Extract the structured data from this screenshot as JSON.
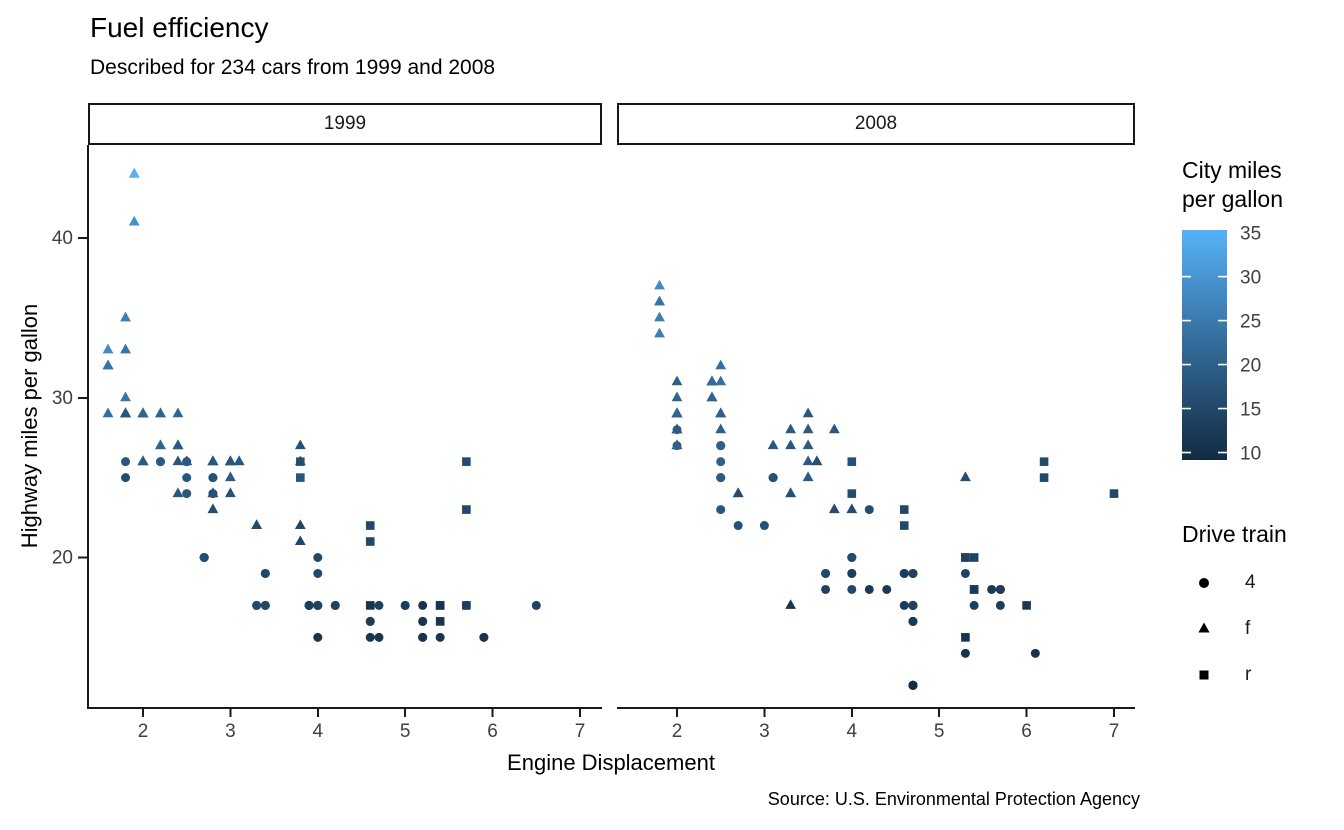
{
  "title": "Fuel efficiency",
  "subtitle": "Described for 234 cars from 1999 and 2008",
  "caption": "Source: U.S. Environmental Protection Agency",
  "chart_data": {
    "type": "scatter",
    "title": "Fuel efficiency",
    "subtitle": "Described for 234 cars from 1999 and 2008",
    "xlabel": "Engine Displacement",
    "ylabel": "Highway miles per gallon",
    "facets": [
      {
        "label": "1999"
      },
      {
        "label": "2008"
      }
    ],
    "x_ticks": [
      2,
      3,
      4,
      5,
      6,
      7
    ],
    "y_ticks": [
      20,
      30,
      40
    ],
    "xlim": [
      1.37,
      7.25
    ],
    "ylim": [
      10.5,
      45.7
    ],
    "grid": false,
    "color_scale": {
      "title": "City miles\nper gallon",
      "low_color": "#132B43",
      "high_color": "#56B1F7",
      "domain": [
        9,
        35
      ],
      "ticks": [
        35,
        30,
        25,
        20,
        15,
        10
      ]
    },
    "shape_legend": {
      "title": "Drive train",
      "items": [
        {
          "shape": "circle",
          "label": "4"
        },
        {
          "shape": "triangle",
          "label": "f"
        },
        {
          "shape": "square",
          "label": "r"
        }
      ]
    },
    "point_format": [
      "displ",
      "hwy",
      "cty",
      "drv"
    ],
    "points": {
      "1999": [
        [
          1.8,
          29,
          18,
          "f"
        ],
        [
          1.8,
          29,
          21,
          "f"
        ],
        [
          2.8,
          26,
          16,
          "f"
        ],
        [
          2.8,
          26,
          18,
          "f"
        ],
        [
          1.8,
          26,
          18,
          "4"
        ],
        [
          1.8,
          25,
          16,
          "4"
        ],
        [
          2.8,
          25,
          15,
          "4"
        ],
        [
          2.8,
          25,
          17,
          "4"
        ],
        [
          2.8,
          24,
          15,
          "4"
        ],
        [
          5.7,
          17,
          13,
          "r"
        ],
        [
          5.7,
          26,
          16,
          "r"
        ],
        [
          5.7,
          23,
          15,
          "r"
        ],
        [
          5.7,
          17,
          13,
          "4"
        ],
        [
          6.5,
          17,
          14,
          "4"
        ],
        [
          2.4,
          27,
          19,
          "f"
        ],
        [
          3.1,
          26,
          18,
          "f"
        ],
        [
          2.4,
          24,
          18,
          "f"
        ],
        [
          3.0,
          24,
          17,
          "f"
        ],
        [
          3.3,
          22,
          16,
          "f"
        ],
        [
          3.3,
          22,
          16,
          "f"
        ],
        [
          3.8,
          22,
          15,
          "f"
        ],
        [
          3.8,
          21,
          15,
          "f"
        ],
        [
          3.9,
          17,
          13,
          "4"
        ],
        [
          3.9,
          17,
          14,
          "4"
        ],
        [
          5.2,
          17,
          11,
          "4"
        ],
        [
          5.2,
          15,
          11,
          "4"
        ],
        [
          3.9,
          17,
          13,
          "4"
        ],
        [
          5.2,
          16,
          11,
          "4"
        ],
        [
          5.9,
          15,
          11,
          "4"
        ],
        [
          5.2,
          15,
          11,
          "4"
        ],
        [
          5.2,
          16,
          11,
          "4"
        ],
        [
          5.9,
          15,
          11,
          "4"
        ],
        [
          4.6,
          17,
          11,
          "r"
        ],
        [
          5.4,
          17,
          11,
          "r"
        ],
        [
          4.0,
          17,
          14,
          "4"
        ],
        [
          4.0,
          19,
          15,
          "4"
        ],
        [
          4.0,
          17,
          14,
          "4"
        ],
        [
          5.0,
          17,
          13,
          "4"
        ],
        [
          4.2,
          17,
          14,
          "4"
        ],
        [
          4.2,
          17,
          14,
          "4"
        ],
        [
          4.6,
          16,
          13,
          "4"
        ],
        [
          4.6,
          16,
          13,
          "4"
        ],
        [
          5.4,
          15,
          11,
          "4"
        ],
        [
          3.8,
          26,
          18,
          "r"
        ],
        [
          3.8,
          25,
          18,
          "r"
        ],
        [
          4.6,
          21,
          15,
          "r"
        ],
        [
          4.6,
          22,
          15,
          "r"
        ],
        [
          1.6,
          33,
          28,
          "f"
        ],
        [
          1.6,
          32,
          24,
          "f"
        ],
        [
          1.6,
          32,
          25,
          "f"
        ],
        [
          1.6,
          29,
          23,
          "f"
        ],
        [
          1.6,
          32,
          24,
          "f"
        ],
        [
          2.4,
          26,
          18,
          "f"
        ],
        [
          2.4,
          27,
          18,
          "f"
        ],
        [
          2.5,
          26,
          18,
          "f"
        ],
        [
          2.5,
          26,
          18,
          "f"
        ],
        [
          2.0,
          26,
          19,
          "f"
        ],
        [
          2.0,
          29,
          19,
          "f"
        ],
        [
          4.0,
          20,
          15,
          "4"
        ],
        [
          4.7,
          17,
          14,
          "4"
        ],
        [
          4.0,
          15,
          11,
          "4"
        ],
        [
          4.6,
          15,
          11,
          "4"
        ],
        [
          5.4,
          17,
          11,
          "r"
        ],
        [
          5.4,
          16,
          11,
          "r"
        ],
        [
          4.0,
          17,
          14,
          "4"
        ],
        [
          5.0,
          17,
          13,
          "4"
        ],
        [
          2.4,
          29,
          21,
          "f"
        ],
        [
          2.4,
          27,
          19,
          "f"
        ],
        [
          3.0,
          26,
          18,
          "f"
        ],
        [
          3.0,
          25,
          19,
          "f"
        ],
        [
          3.3,
          17,
          14,
          "4"
        ],
        [
          3.3,
          17,
          15,
          "4"
        ],
        [
          3.1,
          26,
          18,
          "f"
        ],
        [
          3.8,
          26,
          16,
          "f"
        ],
        [
          3.8,
          27,
          17,
          "f"
        ],
        [
          2.5,
          25,
          18,
          "4"
        ],
        [
          2.5,
          24,
          18,
          "4"
        ],
        [
          2.2,
          26,
          21,
          "4"
        ],
        [
          2.2,
          26,
          19,
          "4"
        ],
        [
          2.5,
          26,
          19,
          "4"
        ],
        [
          2.5,
          26,
          19,
          "4"
        ],
        [
          2.7,
          20,
          15,
          "4"
        ],
        [
          2.7,
          20,
          16,
          "4"
        ],
        [
          3.4,
          19,
          15,
          "4"
        ],
        [
          3.4,
          17,
          15,
          "4"
        ],
        [
          2.2,
          29,
          21,
          "f"
        ],
        [
          2.2,
          27,
          21,
          "f"
        ],
        [
          3.0,
          26,
          18,
          "f"
        ],
        [
          3.0,
          26,
          18,
          "f"
        ],
        [
          2.2,
          27,
          21,
          "f"
        ],
        [
          2.2,
          29,
          21,
          "f"
        ],
        [
          3.0,
          26,
          18,
          "f"
        ],
        [
          3.0,
          26,
          18,
          "f"
        ],
        [
          1.8,
          30,
          24,
          "f"
        ],
        [
          1.8,
          33,
          24,
          "f"
        ],
        [
          1.8,
          35,
          26,
          "f"
        ],
        [
          4.7,
          15,
          11,
          "4"
        ],
        [
          2.7,
          20,
          15,
          "4"
        ],
        [
          2.7,
          20,
          16,
          "4"
        ],
        [
          3.4,
          17,
          15,
          "4"
        ],
        [
          3.4,
          19,
          15,
          "4"
        ],
        [
          2.0,
          29,
          21,
          "f"
        ],
        [
          2.0,
          26,
          19,
          "f"
        ],
        [
          2.8,
          24,
          17,
          "f"
        ],
        [
          1.9,
          44,
          33,
          "f"
        ],
        [
          2.0,
          29,
          21,
          "f"
        ],
        [
          2.0,
          26,
          19,
          "f"
        ],
        [
          2.8,
          23,
          16,
          "f"
        ],
        [
          2.8,
          24,
          17,
          "f"
        ],
        [
          1.9,
          44,
          35,
          "f"
        ],
        [
          1.9,
          41,
          29,
          "f"
        ],
        [
          2.0,
          29,
          21,
          "f"
        ],
        [
          2.0,
          26,
          19,
          "f"
        ],
        [
          1.8,
          29,
          21,
          "f"
        ],
        [
          1.8,
          29,
          18,
          "f"
        ],
        [
          2.8,
          26,
          16,
          "f"
        ],
        [
          2.8,
          26,
          18,
          "f"
        ]
      ],
      "2008": [
        [
          2.0,
          31,
          20,
          "f"
        ],
        [
          2.0,
          30,
          21,
          "f"
        ],
        [
          3.1,
          27,
          18,
          "f"
        ],
        [
          2.0,
          28,
          20,
          "4"
        ],
        [
          2.0,
          27,
          19,
          "4"
        ],
        [
          3.1,
          25,
          17,
          "4"
        ],
        [
          3.1,
          25,
          15,
          "4"
        ],
        [
          3.1,
          25,
          17,
          "4"
        ],
        [
          4.2,
          23,
          16,
          "4"
        ],
        [
          5.3,
          20,
          14,
          "r"
        ],
        [
          5.3,
          15,
          11,
          "r"
        ],
        [
          5.3,
          20,
          14,
          "r"
        ],
        [
          6.0,
          17,
          12,
          "r"
        ],
        [
          6.2,
          26,
          16,
          "r"
        ],
        [
          6.2,
          25,
          15,
          "r"
        ],
        [
          7.0,
          24,
          15,
          "r"
        ],
        [
          5.3,
          19,
          14,
          "4"
        ],
        [
          5.3,
          14,
          11,
          "4"
        ],
        [
          2.4,
          30,
          22,
          "f"
        ],
        [
          3.5,
          29,
          18,
          "f"
        ],
        [
          3.6,
          26,
          17,
          "f"
        ],
        [
          3.3,
          24,
          17,
          "f"
        ],
        [
          3.3,
          24,
          17,
          "f"
        ],
        [
          3.3,
          17,
          11,
          "f"
        ],
        [
          3.8,
          23,
          16,
          "f"
        ],
        [
          4.0,
          23,
          16,
          "f"
        ],
        [
          3.7,
          19,
          15,
          "4"
        ],
        [
          3.7,
          18,
          14,
          "4"
        ],
        [
          4.7,
          19,
          14,
          "4"
        ],
        [
          4.7,
          19,
          14,
          "4"
        ],
        [
          4.7,
          12,
          9,
          "4"
        ],
        [
          4.7,
          17,
          13,
          "4"
        ],
        [
          4.7,
          12,
          9,
          "4"
        ],
        [
          4.7,
          17,
          13,
          "4"
        ],
        [
          5.7,
          18,
          13,
          "4"
        ],
        [
          4.7,
          16,
          12,
          "4"
        ],
        [
          4.7,
          12,
          9,
          "4"
        ],
        [
          4.7,
          17,
          13,
          "4"
        ],
        [
          4.7,
          17,
          13,
          "4"
        ],
        [
          4.7,
          16,
          12,
          "4"
        ],
        [
          4.7,
          12,
          9,
          "4"
        ],
        [
          5.7,
          17,
          13,
          "4"
        ],
        [
          5.4,
          18,
          12,
          "r"
        ],
        [
          4.0,
          19,
          13,
          "4"
        ],
        [
          4.6,
          19,
          13,
          "4"
        ],
        [
          4.6,
          17,
          13,
          "4"
        ],
        [
          5.4,
          17,
          13,
          "4"
        ],
        [
          4.0,
          26,
          17,
          "r"
        ],
        [
          4.0,
          24,
          16,
          "r"
        ],
        [
          4.6,
          23,
          15,
          "r"
        ],
        [
          4.6,
          22,
          15,
          "r"
        ],
        [
          5.4,
          20,
          14,
          "r"
        ],
        [
          1.8,
          34,
          26,
          "f"
        ],
        [
          1.8,
          36,
          25,
          "f"
        ],
        [
          1.8,
          36,
          24,
          "f"
        ],
        [
          2.0,
          29,
          21,
          "f"
        ],
        [
          2.4,
          30,
          21,
          "f"
        ],
        [
          2.4,
          31,
          21,
          "f"
        ],
        [
          3.3,
          28,
          19,
          "f"
        ],
        [
          2.0,
          28,
          20,
          "f"
        ],
        [
          2.0,
          27,
          20,
          "f"
        ],
        [
          2.0,
          27,
          20,
          "f"
        ],
        [
          2.7,
          24,
          17,
          "f"
        ],
        [
          2.7,
          24,
          16,
          "f"
        ],
        [
          3.0,
          22,
          17,
          "4"
        ],
        [
          3.7,
          19,
          15,
          "4"
        ],
        [
          4.7,
          12,
          9,
          "4"
        ],
        [
          4.7,
          19,
          14,
          "4"
        ],
        [
          5.7,
          18,
          13,
          "4"
        ],
        [
          6.1,
          14,
          11,
          "4"
        ],
        [
          4.2,
          18,
          12,
          "4"
        ],
        [
          4.4,
          18,
          12,
          "4"
        ],
        [
          5.4,
          18,
          12,
          "r"
        ],
        [
          4.0,
          19,
          13,
          "4"
        ],
        [
          4.6,
          19,
          13,
          "4"
        ],
        [
          2.5,
          31,
          23,
          "f"
        ],
        [
          2.5,
          32,
          23,
          "f"
        ],
        [
          3.5,
          27,
          19,
          "f"
        ],
        [
          3.5,
          26,
          19,
          "f"
        ],
        [
          3.5,
          25,
          19,
          "f"
        ],
        [
          4.0,
          20,
          14,
          "4"
        ],
        [
          5.6,
          18,
          12,
          "4"
        ],
        [
          3.8,
          28,
          18,
          "f"
        ],
        [
          5.3,
          25,
          16,
          "f"
        ],
        [
          2.5,
          27,
          20,
          "4"
        ],
        [
          2.5,
          25,
          19,
          "4"
        ],
        [
          2.5,
          26,
          20,
          "4"
        ],
        [
          2.5,
          23,
          18,
          "4"
        ],
        [
          2.5,
          25,
          20,
          "4"
        ],
        [
          2.5,
          27,
          20,
          "4"
        ],
        [
          2.5,
          25,
          19,
          "4"
        ],
        [
          2.5,
          27,
          20,
          "4"
        ],
        [
          4.0,
          20,
          16,
          "4"
        ],
        [
          4.7,
          17,
          14,
          "4"
        ],
        [
          2.4,
          31,
          21,
          "f"
        ],
        [
          2.4,
          31,
          21,
          "f"
        ],
        [
          3.5,
          28,
          19,
          "f"
        ],
        [
          2.4,
          31,
          21,
          "f"
        ],
        [
          2.4,
          31,
          22,
          "f"
        ],
        [
          3.3,
          27,
          18,
          "f"
        ],
        [
          1.8,
          37,
          28,
          "f"
        ],
        [
          1.8,
          35,
          26,
          "f"
        ],
        [
          5.7,
          18,
          13,
          "4"
        ],
        [
          2.7,
          22,
          17,
          "4"
        ],
        [
          4.0,
          18,
          15,
          "4"
        ],
        [
          4.0,
          20,
          16,
          "4"
        ],
        [
          2.0,
          29,
          21,
          "f"
        ],
        [
          2.0,
          29,
          22,
          "f"
        ],
        [
          2.0,
          29,
          22,
          "f"
        ],
        [
          2.0,
          29,
          21,
          "f"
        ],
        [
          2.5,
          29,
          21,
          "f"
        ],
        [
          2.5,
          29,
          21,
          "f"
        ],
        [
          2.5,
          28,
          20,
          "f"
        ],
        [
          2.5,
          29,
          20,
          "f"
        ],
        [
          2.0,
          28,
          19,
          "f"
        ],
        [
          2.0,
          29,
          21,
          "f"
        ],
        [
          3.6,
          26,
          17,
          "f"
        ]
      ]
    }
  }
}
